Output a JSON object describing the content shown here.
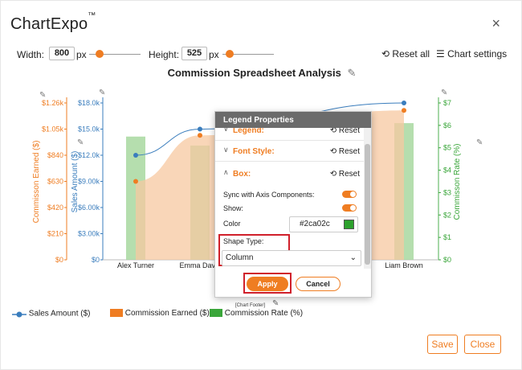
{
  "app": {
    "brand": "ChartExpo",
    "trademark": "™",
    "close_glyph": "×"
  },
  "toolbar": {
    "width_label": "Width:",
    "width_value": "800",
    "width_unit": "px",
    "height_label": "Height:",
    "height_value": "525",
    "height_unit": "px",
    "reset_all": "Reset all",
    "chart_settings": "Chart settings"
  },
  "colors": {
    "accent": "#ef7d22",
    "sales": "#3a7dbd",
    "commission": "#f7c8a0",
    "rate": "#a8d8a0",
    "rate_axis": "#4caf50",
    "highlight": "#d0202b"
  },
  "chart_data": {
    "type": "bar",
    "title": "Commission Spreadsheet Analysis",
    "categories": [
      "Alex Turner",
      "Emma Davis",
      "",
      "",
      "Liam Brown"
    ],
    "series": [
      {
        "name": "Sales Amount ($)",
        "type": "line",
        "axis": "left-inner",
        "values": [
          12000,
          15000,
          null,
          null,
          18000
        ]
      },
      {
        "name": "Commission Earned ($)",
        "type": "area",
        "axis": "left-outer",
        "values": [
          630,
          1000,
          null,
          null,
          1200
        ]
      },
      {
        "name": "Commission Rate (%)",
        "type": "bar",
        "axis": "right",
        "values": [
          5.5,
          5.1,
          null,
          null,
          6.1
        ]
      }
    ],
    "axes": {
      "commission_label": "Commisson Earned ($)",
      "commission_ticks": [
        "$1.26k",
        "$1.05k",
        "$840",
        "$630",
        "$420",
        "$210",
        "$0"
      ],
      "sales_label": "Sales Amount ($)",
      "sales_ticks": [
        "$18.0k",
        "$15.0k",
        "$12.0k",
        "$9.00k",
        "$6.00k",
        "$3.00k",
        "$0"
      ],
      "rate_label": "Commisson Rate (%)",
      "rate_ticks": [
        "$7",
        "$6",
        "$5",
        "$4",
        "$3",
        "$2",
        "$1",
        "$0"
      ]
    },
    "legend_position": "bottom-left",
    "footer": "[Chart Footer]"
  },
  "legend": {
    "items": [
      {
        "label": "Sales Amount ($)"
      },
      {
        "label": "Commission Earned ($)"
      },
      {
        "label": "Commission Rate (%)"
      }
    ]
  },
  "dialog": {
    "title": "Legend Properties",
    "sections": [
      {
        "label": "Legend:",
        "reset": "Reset"
      },
      {
        "label": "Font Style:",
        "reset": "Reset"
      },
      {
        "label": "Box:",
        "reset": "Reset"
      }
    ],
    "sync_label": "Sync with Axis Components:",
    "show_label": "Show:",
    "color_label": "Color",
    "color_value": "#2ca02c",
    "shape_type_label": "Shape Type:",
    "shape_type_value": "Column",
    "apply": "Apply",
    "cancel": "Cancel"
  },
  "footer": {
    "save": "Save",
    "close": "Close"
  }
}
